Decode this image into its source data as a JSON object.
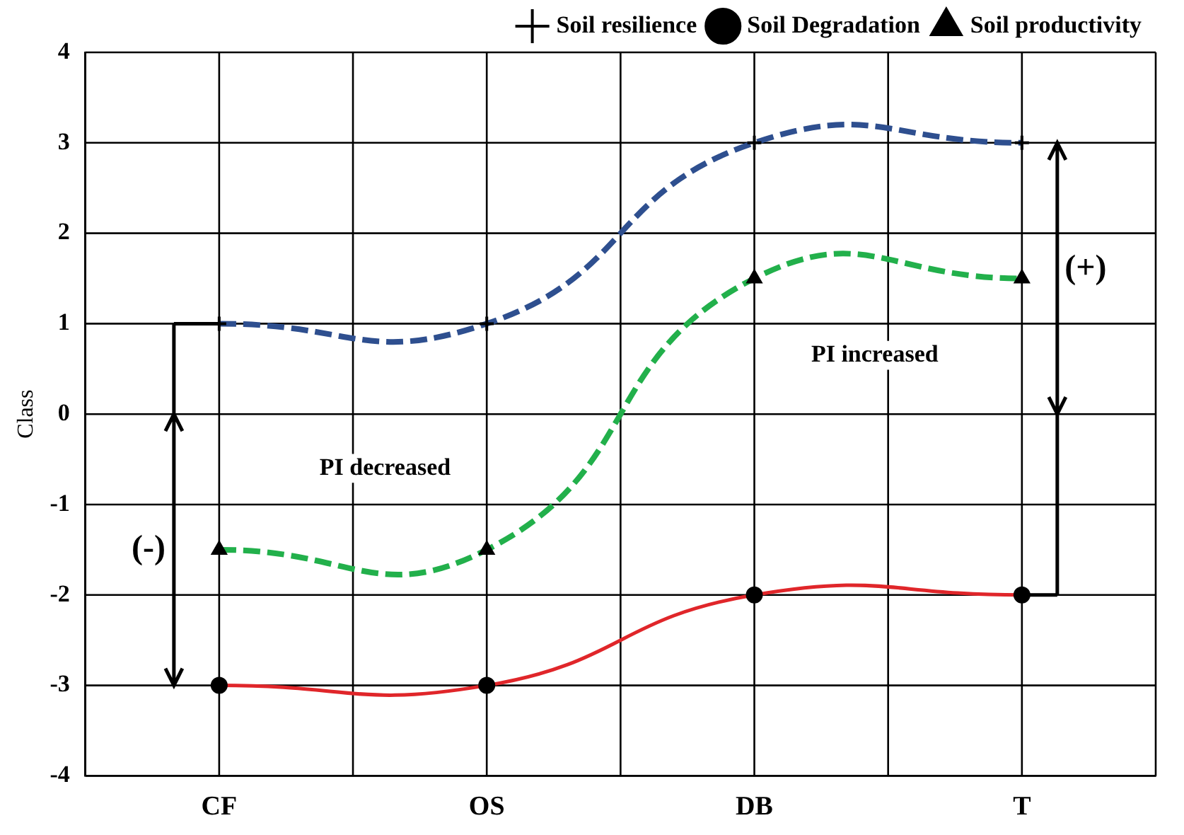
{
  "chart_data": {
    "type": "line",
    "ylabel": "Class",
    "categories": [
      "CF",
      "OS",
      "DB",
      "T"
    ],
    "series": [
      {
        "name": "Soil resilience",
        "color": "#2e4f8f",
        "values": [
          1,
          1,
          3,
          3
        ],
        "marker": "cross",
        "line_style": "dashed"
      },
      {
        "name": "Soil Degradation",
        "color": "#e0262a",
        "values": [
          -3,
          -3,
          -2,
          -2
        ],
        "marker": "circle",
        "line_style": "solid"
      },
      {
        "name": "Soil productivity",
        "color": "#22b04b",
        "values": [
          -1.5,
          -1.5,
          1.5,
          1.5
        ],
        "marker": "triangle",
        "line_style": "dashed"
      }
    ],
    "ylim": [
      -4,
      4
    ],
    "yticks": [
      -4,
      -3,
      -2,
      -1,
      0,
      1,
      2,
      3,
      4
    ],
    "grid": true,
    "legend": "top",
    "annotations": [
      "PI decreased",
      "PI increased",
      "(-)",
      "(+)"
    ]
  }
}
